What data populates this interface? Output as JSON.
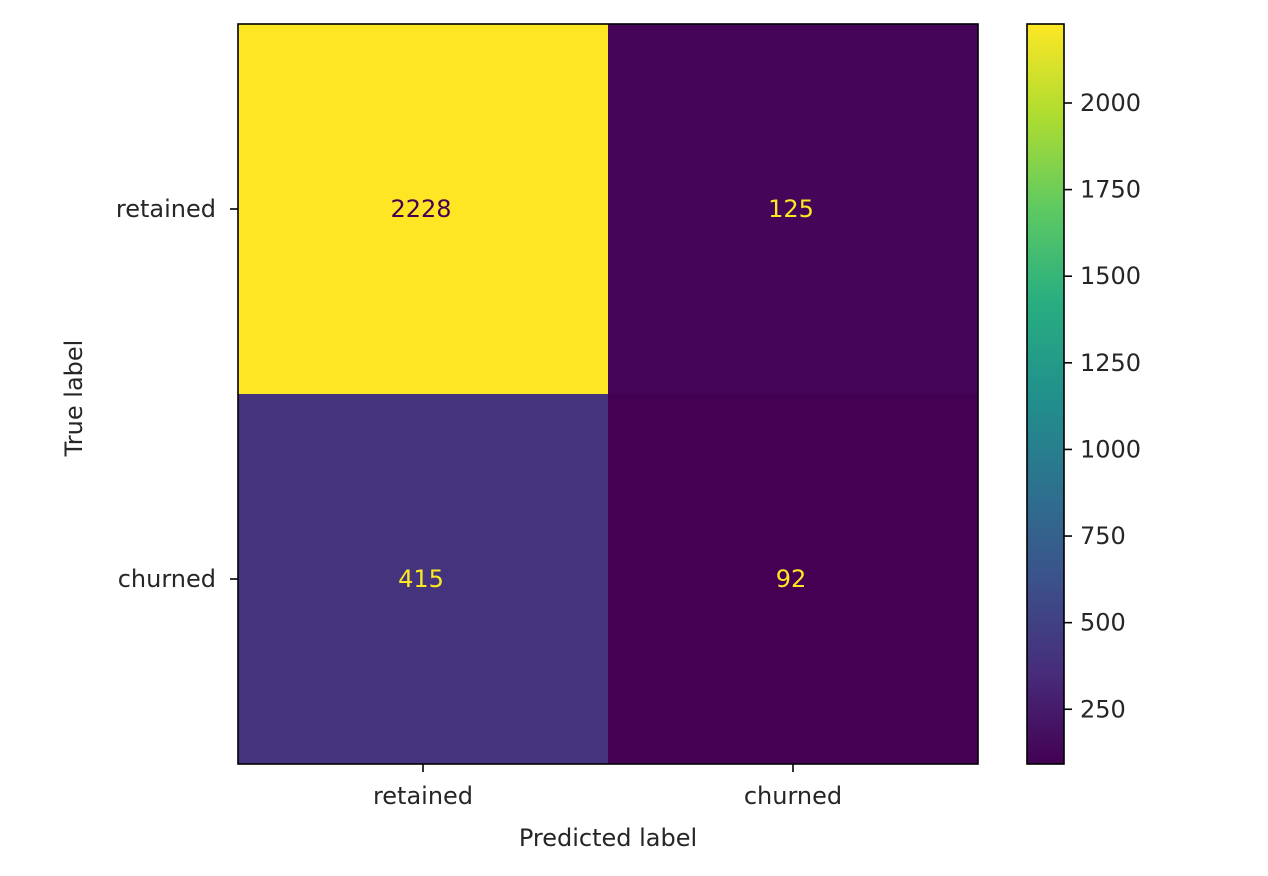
{
  "chart_data": {
    "type": "heatmap",
    "title": "",
    "xlabel": "Predicted label",
    "ylabel": "True label",
    "x_categories": [
      "retained",
      "churned"
    ],
    "y_categories": [
      "retained",
      "churned"
    ],
    "values": [
      [
        2228,
        125
      ],
      [
        415,
        92
      ]
    ],
    "colormap": "viridis",
    "colorbar": {
      "range": [
        92,
        2228
      ],
      "ticks": [
        250,
        500,
        750,
        1000,
        1250,
        1500,
        1750,
        2000
      ]
    },
    "colors": {
      "text_on_dark": "#fde725",
      "text_on_light": "#440154"
    }
  }
}
